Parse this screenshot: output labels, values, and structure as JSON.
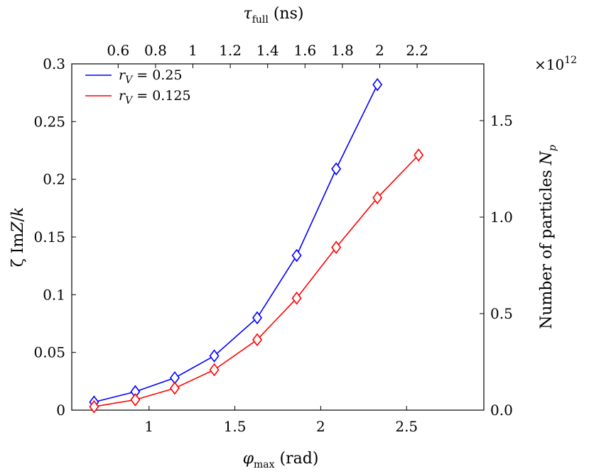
{
  "chart_data": {
    "type": "line",
    "x_axis": {
      "label_symbol": "φ",
      "label_sub": "max",
      "label_unit": " (rad)",
      "range": [
        0.55,
        2.95
      ],
      "ticks": [
        1,
        1.5,
        2,
        2.5
      ],
      "tick_labels": [
        "1",
        "1.5",
        "2",
        "2.5"
      ]
    },
    "top_axis": {
      "label_symbol": "τ",
      "label_sub": "full",
      "label_unit": " (ns)",
      "ticks": [
        0.6,
        0.8,
        1,
        1.2,
        1.4,
        1.6,
        1.8,
        2,
        2.2
      ],
      "tick_labels": [
        "0.6",
        "0.8",
        "1",
        "1.2",
        "1.4",
        "1.6",
        "1.8",
        "2",
        "2.2"
      ]
    },
    "y_axis_left": {
      "label_prefix": "ζ Im",
      "label_Z": "Z",
      "label_slash": "/",
      "label_k": "k",
      "range": [
        0,
        0.3
      ],
      "ticks": [
        0,
        0.05,
        0.1,
        0.15,
        0.2,
        0.25,
        0.3
      ],
      "tick_labels": [
        "0",
        "0.05",
        "0.1",
        "0.15",
        "0.2",
        "0.25",
        "0.3"
      ]
    },
    "y_axis_right": {
      "label_text": "Number of particles ",
      "label_N": "N",
      "label_sub": "p",
      "ticks": [
        0.0,
        0.5,
        1.0,
        1.5
      ],
      "tick_labels": [
        "0.0",
        "0.5",
        "1.0",
        "1.5"
      ],
      "multiplier_base": "×10",
      "multiplier_exp": "12"
    },
    "series": [
      {
        "name_var": "r",
        "name_sub": "V",
        "name_value": " = 0.25",
        "color": "#0000ff",
        "marker": "diamond",
        "x": [
          0.68,
          0.92,
          1.15,
          1.38,
          1.63,
          1.86,
          2.09,
          2.33
        ],
        "y": [
          0.007,
          0.016,
          0.028,
          0.047,
          0.08,
          0.134,
          0.209,
          0.282
        ]
      },
      {
        "name_var": "r",
        "name_sub": "V",
        "name_value": " = 0.125",
        "color": "#ff0000",
        "marker": "diamond",
        "x": [
          0.68,
          0.92,
          1.15,
          1.38,
          1.63,
          1.86,
          2.09,
          2.33,
          2.57
        ],
        "y": [
          0.003,
          0.009,
          0.019,
          0.035,
          0.061,
          0.097,
          0.141,
          0.184,
          0.221
        ]
      }
    ],
    "legend_position": "top-left",
    "grid": false
  }
}
